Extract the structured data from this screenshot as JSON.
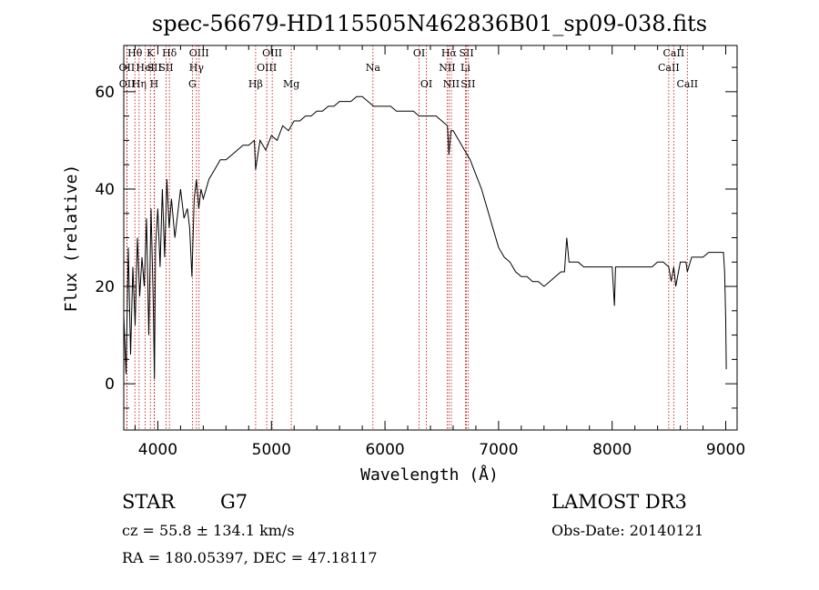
{
  "chart_data": {
    "type": "line",
    "title": "spec-56679-HD115505N462836B01_sp09-038.fits",
    "xlabel": "Wavelength (Å)",
    "ylabel": "Flux (relative)",
    "xlim": [
      3700,
      9100
    ],
    "ylim": [
      -9.5,
      69.5
    ],
    "xticks": [
      4000,
      5000,
      6000,
      7000,
      8000,
      9000
    ],
    "yticks": [
      0,
      20,
      40,
      60
    ],
    "grid": false,
    "legend": "none",
    "line_color": "#000000",
    "marker_color": "#c00000",
    "series": [
      {
        "x": [
          3700,
          3720,
          3740,
          3760,
          3780,
          3800,
          3820,
          3840,
          3860,
          3880,
          3900,
          3920,
          3940,
          3960,
          3970,
          3980,
          4000,
          4020,
          4040,
          4060,
          4080,
          4100,
          4120,
          4150,
          4180,
          4200,
          4230,
          4260,
          4280,
          4300,
          4320,
          4340,
          4360,
          4380,
          4400,
          4450,
          4500,
          4550,
          4600,
          4650,
          4700,
          4750,
          4800,
          4850,
          4861,
          4900,
          4950,
          5000,
          5050,
          5100,
          5150,
          5200,
          5250,
          5300,
          5350,
          5400,
          5450,
          5500,
          5550,
          5600,
          5650,
          5700,
          5750,
          5800,
          5850,
          5900,
          5950,
          6000,
          6050,
          6100,
          6150,
          6200,
          6250,
          6300,
          6350,
          6400,
          6450,
          6500,
          6550,
          6563,
          6580,
          6600,
          6650,
          6700,
          6750,
          6800,
          6850,
          6900,
          6950,
          7000,
          7050,
          7100,
          7150,
          7200,
          7250,
          7300,
          7350,
          7400,
          7450,
          7500,
          7550,
          7580,
          7600,
          7620,
          7650,
          7700,
          7750,
          7800,
          7850,
          7900,
          7950,
          8000,
          8020,
          8030,
          8050,
          8100,
          8150,
          8200,
          8250,
          8300,
          8350,
          8400,
          8450,
          8498,
          8520,
          8542,
          8560,
          8600,
          8650,
          8662,
          8700,
          8750,
          8800,
          8850,
          8900,
          8950,
          8980,
          8990,
          9000,
          9005
        ],
        "y": [
          14,
          2,
          28,
          6,
          24,
          12,
          30,
          18,
          26,
          20,
          34,
          10,
          36,
          16,
          1,
          28,
          36,
          24,
          40,
          26,
          42,
          32,
          38,
          30,
          36,
          40,
          34,
          36,
          32,
          22,
          38,
          42,
          36,
          40,
          38,
          42,
          44,
          46,
          46,
          47,
          48,
          49,
          49,
          50,
          44,
          50,
          48,
          51,
          50,
          53,
          52,
          54,
          54,
          55,
          55,
          56,
          56,
          57,
          57,
          58,
          58,
          58,
          59,
          59,
          58,
          57,
          57,
          57,
          57,
          56,
          56,
          56,
          56,
          55,
          55,
          55,
          55,
          54,
          53,
          47,
          52,
          52,
          50,
          48,
          46,
          43,
          40,
          36,
          32,
          28,
          26,
          25,
          23,
          22,
          22,
          21,
          21,
          20,
          21,
          22,
          23,
          23,
          30,
          25,
          25,
          25,
          24,
          24,
          24,
          24,
          24,
          24,
          16,
          24,
          24,
          24,
          24,
          24,
          24,
          24,
          24,
          25,
          25,
          24,
          21,
          24,
          20,
          25,
          25,
          23,
          26,
          26,
          26,
          27,
          27,
          27,
          27,
          23,
          13,
          3
        ]
      }
    ],
    "line_markers": [
      {
        "label": "Hθ",
        "x": 3798,
        "row": 1
      },
      {
        "label": "OII",
        "x": 3727,
        "row": 2
      },
      {
        "label": "OII",
        "x": 3729,
        "row": 3
      },
      {
        "label": "Hη",
        "x": 3835,
        "row": 3
      },
      {
        "label": "HeI",
        "x": 3889,
        "row": 2
      },
      {
        "label": "K",
        "x": 3934,
        "row": 1
      },
      {
        "label": "SII",
        "x": 3970,
        "row": 2
      },
      {
        "label": "H",
        "x": 3968,
        "row": 3
      },
      {
        "label": "Hδ",
        "x": 4102,
        "row": 1
      },
      {
        "label": "SII",
        "x": 4072,
        "row": 2
      },
      {
        "label": "OIII",
        "x": 4363,
        "row": 1
      },
      {
        "label": "Hγ",
        "x": 4340,
        "row": 2
      },
      {
        "label": "G",
        "x": 4304,
        "row": 3
      },
      {
        "label": "Hβ",
        "x": 4861,
        "row": 3
      },
      {
        "label": "OIII",
        "x": 5007,
        "row": 1
      },
      {
        "label": "OIII",
        "x": 4959,
        "row": 2
      },
      {
        "label": "Mg",
        "x": 5175,
        "row": 3
      },
      {
        "label": "Na",
        "x": 5894,
        "row": 2
      },
      {
        "label": "OI",
        "x": 6300,
        "row": 1
      },
      {
        "label": "OI",
        "x": 6364,
        "row": 3
      },
      {
        "label": "Hα",
        "x": 6563,
        "row": 1
      },
      {
        "label": "NII",
        "x": 6548,
        "row": 2
      },
      {
        "label": "NII",
        "x": 6584,
        "row": 3
      },
      {
        "label": "SII",
        "x": 6717,
        "row": 1
      },
      {
        "label": "Li",
        "x": 6708,
        "row": 2
      },
      {
        "label": "SII",
        "x": 6731,
        "row": 3
      },
      {
        "label": "CaII",
        "x": 8542,
        "row": 1
      },
      {
        "label": "CaII",
        "x": 8498,
        "row": 2
      },
      {
        "label": "CaII",
        "x": 8662,
        "row": 3
      }
    ]
  },
  "info": {
    "object_class": "STAR",
    "subclass": "G7",
    "survey": "LAMOST DR3",
    "redshift_line": "cz = 55.8 ± 134.1 km/s",
    "obs_date": "Obs-Date: 20140121",
    "coords": "RA = 180.05397, DEC =  47.18117"
  }
}
